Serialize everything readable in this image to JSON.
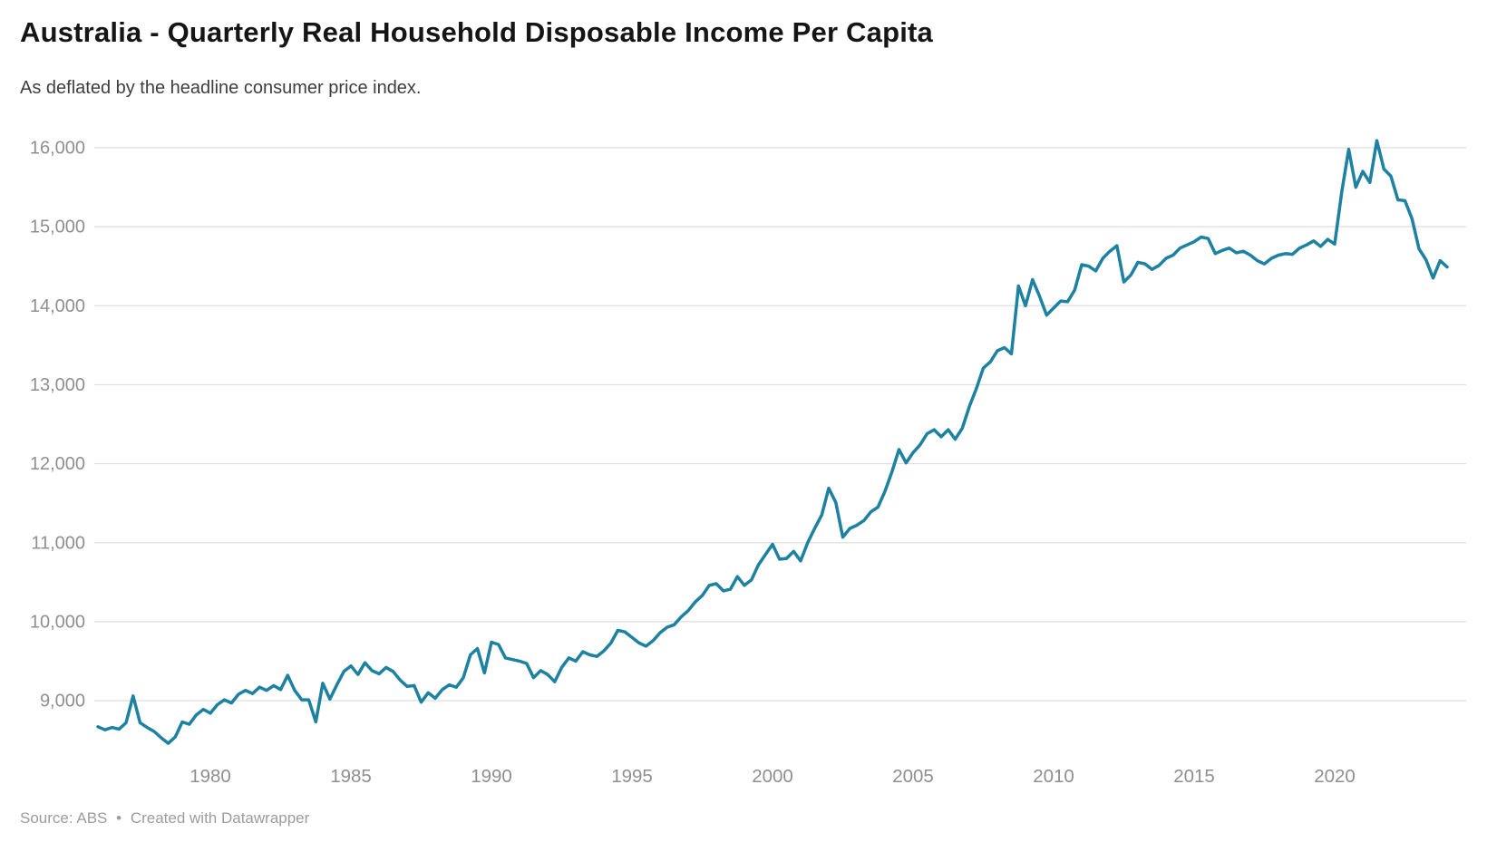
{
  "header": {
    "title": "Australia - Quarterly Real Household Disposable Income Per Capita",
    "subtitle": "As deflated by the headline consumer price index."
  },
  "footer": {
    "source_label": "Source: ABS",
    "bullet": "•",
    "credit": "Created with Datawrapper"
  },
  "colors": {
    "background": "#ffffff",
    "line": "#1d81a2",
    "grid": "#dedede",
    "tick_text": "#8f8f8f",
    "title_text": "#151515",
    "subtitle_text": "#3e3e3e",
    "footer_text": "#9c9c9c"
  },
  "chart_data": {
    "type": "line",
    "title": "Australia - Quarterly Real Household Disposable Income Per Capita",
    "subtitle": "As deflated by the headline consumer price index.",
    "xlabel": "",
    "ylabel": "",
    "frequency": "quarterly",
    "start_period": "1976-Q1",
    "end_period": "2024-Q1",
    "x_start_year": 1976.0,
    "x_step_years": 0.25,
    "x_ticks": [
      1980,
      1985,
      1990,
      1995,
      2000,
      2005,
      2010,
      2015,
      2020
    ],
    "y_ticks": [
      9000,
      10000,
      11000,
      12000,
      13000,
      14000,
      15000,
      16000
    ],
    "ylim": [
      8350,
      16260
    ],
    "xlim": [
      1975.9,
      2024.7
    ],
    "grid": "horizontal",
    "legend": "none",
    "series": [
      {
        "name": "Real household disposable income per capita",
        "values": [
          8670,
          8630,
          8660,
          8640,
          8720,
          9060,
          8720,
          8660,
          8610,
          8530,
          8460,
          8540,
          8730,
          8700,
          8820,
          8890,
          8840,
          8950,
          9010,
          8970,
          9080,
          9130,
          9090,
          9170,
          9130,
          9190,
          9140,
          9320,
          9130,
          9010,
          9010,
          8730,
          9220,
          9020,
          9200,
          9370,
          9440,
          9330,
          9480,
          9380,
          9340,
          9420,
          9370,
          9260,
          9180,
          9190,
          8980,
          9100,
          9030,
          9140,
          9200,
          9170,
          9290,
          9580,
          9660,
          9350,
          9740,
          9710,
          9540,
          9520,
          9500,
          9470,
          9290,
          9380,
          9330,
          9240,
          9420,
          9540,
          9500,
          9620,
          9580,
          9560,
          9630,
          9730,
          9890,
          9870,
          9800,
          9730,
          9690,
          9760,
          9860,
          9930,
          9960,
          10060,
          10140,
          10250,
          10330,
          10460,
          10480,
          10390,
          10410,
          10570,
          10460,
          10530,
          10720,
          10850,
          10980,
          10790,
          10800,
          10890,
          10770,
          11000,
          11180,
          11350,
          11690,
          11510,
          11070,
          11180,
          11220,
          11280,
          11390,
          11450,
          11650,
          11900,
          12180,
          12010,
          12140,
          12240,
          12380,
          12430,
          12340,
          12430,
          12310,
          12450,
          12720,
          12950,
          13210,
          13290,
          13430,
          13470,
          13390,
          14250,
          14000,
          14330,
          14120,
          13880,
          13970,
          14060,
          14050,
          14200,
          14520,
          14500,
          14440,
          14600,
          14690,
          14760,
          14300,
          14390,
          14550,
          14530,
          14460,
          14510,
          14600,
          14640,
          14730,
          14770,
          14810,
          14870,
          14850,
          14660,
          14700,
          14730,
          14670,
          14690,
          14640,
          14570,
          14530,
          14600,
          14640,
          14660,
          14650,
          14730,
          14770,
          14820,
          14750,
          14840,
          14780,
          15440,
          15980,
          15500,
          15700,
          15560,
          16090,
          15730,
          15640,
          15340,
          15330,
          15100,
          14720,
          14580,
          14350,
          14570,
          14490
        ]
      }
    ]
  }
}
